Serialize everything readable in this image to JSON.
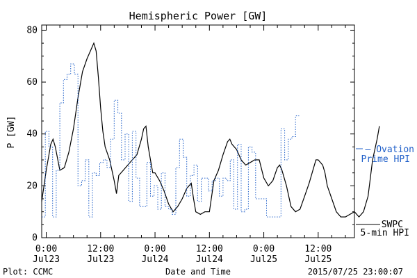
{
  "chart_data": {
    "type": "line",
    "title": "Hemispheric Power [GW]",
    "xlabel": "Date and Time",
    "ylabel": "P [GW]",
    "ylim": [
      0,
      82
    ],
    "yticks": [
      0,
      20,
      40,
      60,
      80
    ],
    "x_unit": "hours since 2015-07-23 00:00",
    "xlim": [
      -1,
      68
    ],
    "xticks": [
      {
        "x": 0,
        "time": "0:00",
        "date": "Jul23"
      },
      {
        "x": 12,
        "time": "12:00",
        "date": "Jul23"
      },
      {
        "x": 24,
        "time": "0:00",
        "date": "Jul24"
      },
      {
        "x": 36,
        "time": "12:00",
        "date": "Jul24"
      },
      {
        "x": 48,
        "time": "0:00",
        "date": "Jul25"
      },
      {
        "x": 60,
        "time": "12:00",
        "date": "Jul25"
      }
    ],
    "grid": false,
    "series": [
      {
        "name": "SWPC 5-min HPI",
        "style": "solid",
        "color": "#000000",
        "points": [
          [
            -1,
            14
          ],
          [
            -0.5,
            20
          ],
          [
            0,
            26
          ],
          [
            0.5,
            31
          ],
          [
            1,
            36
          ],
          [
            1.5,
            38
          ],
          [
            2,
            35
          ],
          [
            3,
            26
          ],
          [
            4,
            27
          ],
          [
            5,
            33
          ],
          [
            6,
            42
          ],
          [
            7,
            54
          ],
          [
            8,
            64
          ],
          [
            9,
            69
          ],
          [
            10,
            73
          ],
          [
            10.5,
            75
          ],
          [
            11,
            72
          ],
          [
            11.5,
            62
          ],
          [
            12,
            50
          ],
          [
            12.5,
            41
          ],
          [
            13,
            35
          ],
          [
            14,
            30
          ],
          [
            15,
            22
          ],
          [
            15.5,
            17
          ],
          [
            16,
            24
          ],
          [
            17,
            26
          ],
          [
            18,
            28
          ],
          [
            19,
            30
          ],
          [
            20,
            32
          ],
          [
            21,
            38
          ],
          [
            21.5,
            42
          ],
          [
            22,
            43
          ],
          [
            22.5,
            35
          ],
          [
            23,
            30
          ],
          [
            23.5,
            25
          ],
          [
            24,
            25
          ],
          [
            25,
            22
          ],
          [
            26,
            18
          ],
          [
            27,
            13
          ],
          [
            28,
            10
          ],
          [
            29,
            12
          ],
          [
            30,
            15
          ],
          [
            31,
            19
          ],
          [
            32,
            21
          ],
          [
            32.5,
            15
          ],
          [
            33,
            10
          ],
          [
            34,
            9
          ],
          [
            35,
            10
          ],
          [
            36,
            10
          ],
          [
            37,
            22
          ],
          [
            38,
            26
          ],
          [
            39,
            32
          ],
          [
            40,
            37
          ],
          [
            40.5,
            38
          ],
          [
            41,
            36
          ],
          [
            42,
            34
          ],
          [
            43,
            30
          ],
          [
            44,
            28
          ],
          [
            45,
            29
          ],
          [
            46,
            30
          ],
          [
            47,
            30
          ],
          [
            48,
            23
          ],
          [
            49,
            20
          ],
          [
            50,
            22
          ],
          [
            51,
            27
          ],
          [
            51.5,
            28
          ],
          [
            52,
            26
          ],
          [
            53,
            20
          ],
          [
            54,
            12
          ],
          [
            55,
            10
          ],
          [
            56,
            11
          ],
          [
            57,
            16
          ],
          [
            58,
            21
          ],
          [
            59,
            27
          ],
          [
            59.5,
            30
          ],
          [
            60,
            30
          ],
          [
            61,
            28
          ],
          [
            61.5,
            25
          ],
          [
            62,
            20
          ],
          [
            63,
            15
          ],
          [
            64,
            10
          ],
          [
            65,
            8
          ],
          [
            66,
            8
          ],
          [
            67,
            9
          ],
          [
            68,
            10
          ],
          [
            69,
            8
          ],
          [
            70,
            10
          ],
          [
            71,
            16
          ],
          [
            72,
            30
          ],
          [
            73,
            38
          ],
          [
            73.5,
            43
          ]
        ]
      },
      {
        "name": "Ovation Prime HPI",
        "style": "dotted",
        "color": "#1f5fc9",
        "x_start": -1,
        "x_step": 0.8,
        "values": [
          8,
          41,
          35,
          8,
          26,
          52,
          61,
          63,
          67,
          63,
          20,
          22,
          30,
          8,
          25,
          24,
          29,
          30,
          27,
          38,
          53,
          48,
          30,
          40,
          14,
          41,
          23,
          12,
          12,
          29,
          16,
          20,
          11,
          25,
          12,
          11,
          9,
          27,
          38,
          31,
          16,
          24,
          28,
          14,
          23,
          23,
          18,
          22,
          23,
          16,
          23,
          22,
          30,
          11,
          36,
          10,
          11,
          35,
          33,
          15,
          15,
          15,
          8,
          8,
          8,
          8,
          42,
          30,
          38,
          39,
          47
        ]
      }
    ],
    "legend": "right",
    "legend_items": [
      {
        "lines": [
          "SWPC",
          "5-min HPI"
        ],
        "color": "#000000"
      },
      {
        "lines": [
          "– Ovation",
          "Prime HPI"
        ],
        "color": "#1f5fc9"
      }
    ],
    "footer_left": "Plot: CCMC",
    "footer_right": "2015/07/25 23:00:07"
  }
}
